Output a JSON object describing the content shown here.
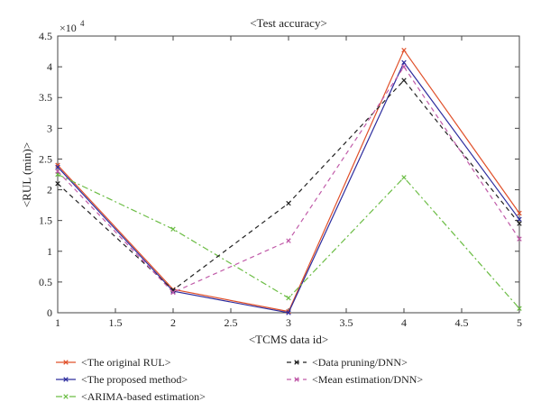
{
  "chart_data": {
    "type": "line",
    "title": "<Test accuracy>",
    "xlabel": "<TCMS data id>",
    "ylabel": "<RUL (min)>",
    "y_multiplier_label": "×10",
    "y_multiplier_exp": "4",
    "xlim": [
      1,
      5
    ],
    "ylim": [
      0,
      4.5
    ],
    "x_ticks": [
      "1",
      "1.5",
      "2",
      "2.5",
      "3",
      "3.5",
      "4",
      "4.5",
      "5"
    ],
    "y_ticks": [
      "0",
      "0.5",
      "1",
      "1.5",
      "2",
      "2.5",
      "3",
      "3.5",
      "4",
      "4.5"
    ],
    "x": [
      1,
      2,
      3,
      4,
      5
    ],
    "grid": false,
    "legend_position": "bottom",
    "series": [
      {
        "name": "<The original RUL>",
        "values": [
          2.4,
          0.38,
          0.02,
          4.27,
          1.62
        ],
        "color": "#e0502a",
        "dash": "solid",
        "marker": "x"
      },
      {
        "name": "<The proposed method>",
        "values": [
          2.37,
          0.35,
          0.0,
          4.07,
          1.52
        ],
        "color": "#2d2d9e",
        "dash": "solid",
        "marker": "x"
      },
      {
        "name": "<ARIMA-based estimation>",
        "values": [
          2.25,
          1.36,
          0.24,
          2.2,
          0.07
        ],
        "color": "#6cbd45",
        "dash": "dashdot",
        "marker": "x"
      },
      {
        "name": "<Data pruning/DNN>",
        "values": [
          2.1,
          0.37,
          1.78,
          3.78,
          1.45
        ],
        "color": "#222222",
        "dash": "dashed",
        "marker": "x"
      },
      {
        "name": "<Mean estimation/DNN>",
        "values": [
          2.3,
          0.33,
          1.17,
          4.0,
          1.2
        ],
        "color": "#c05aa8",
        "dash": "dashed",
        "marker": "x"
      }
    ]
  }
}
